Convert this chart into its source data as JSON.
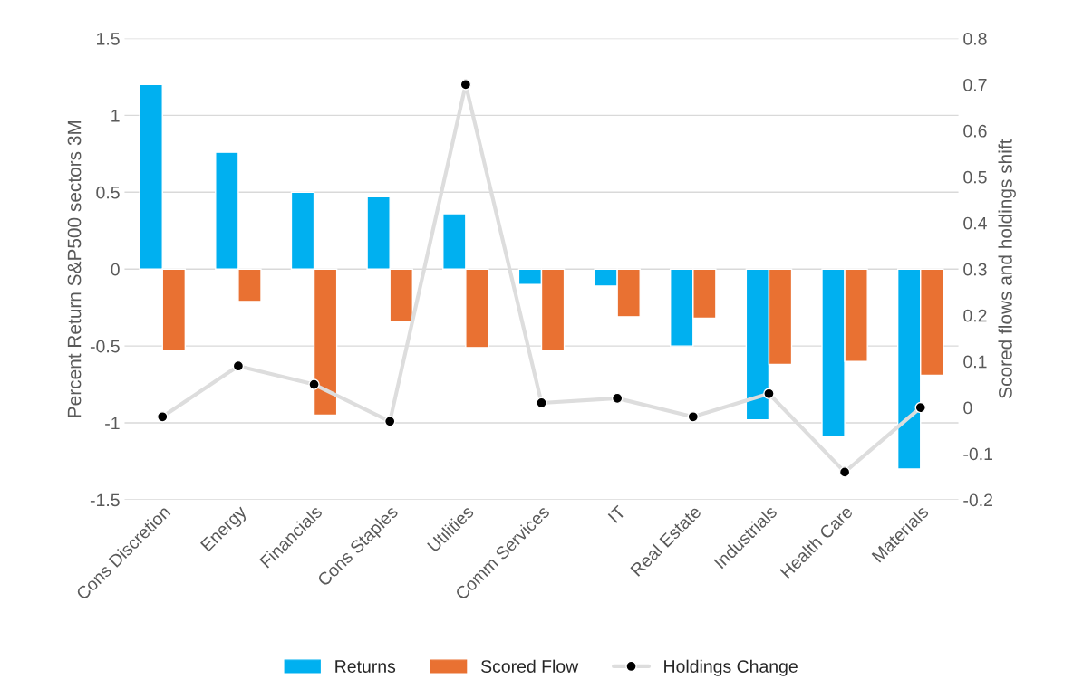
{
  "chart_data": {
    "type": "bar",
    "ylabel": "Percent Return S&P500 sectors 3M",
    "y2label": "Scored flows and holdings shift",
    "categories": [
      "Cons Discretion",
      "Energy",
      "Financials",
      "Cons Staples",
      "Utilities",
      "Comm Services",
      "IT",
      "Real Estate",
      "Industrials",
      "Health Care",
      "Materials"
    ],
    "series": [
      {
        "name": "Returns",
        "color": "#00b0f0",
        "values": [
          1.2,
          0.76,
          0.5,
          0.47,
          0.36,
          -0.1,
          -0.11,
          -0.5,
          -0.98,
          -1.09,
          -1.3
        ]
      },
      {
        "name": "Scored Flow",
        "color": "#e97132",
        "values": [
          -0.53,
          -0.21,
          -0.95,
          -0.34,
          -0.51,
          -0.53,
          -0.31,
          -0.32,
          -0.62,
          -0.6,
          -0.69
        ]
      },
      {
        "name": "Holdings Change",
        "color": "#dddddd",
        "type": "line",
        "axis": "y2",
        "marker": "circle",
        "values": [
          -0.02,
          0.09,
          0.05,
          -0.03,
          0.7,
          0.01,
          0.02,
          -0.02,
          0.03,
          -0.14,
          0
        ]
      }
    ],
    "ylim": [
      -1.5,
      1.5
    ],
    "yticks": [
      -1.5,
      -1,
      -0.5,
      0,
      0.5,
      1,
      1.5
    ],
    "y2lim": [
      -0.2,
      0.8
    ],
    "y2ticks": [
      -0.2,
      -0.1,
      0,
      0.1,
      0.2,
      0.3,
      0.4,
      0.5,
      0.6,
      0.7,
      0.8
    ],
    "grid": "y",
    "legend": "bottom"
  }
}
